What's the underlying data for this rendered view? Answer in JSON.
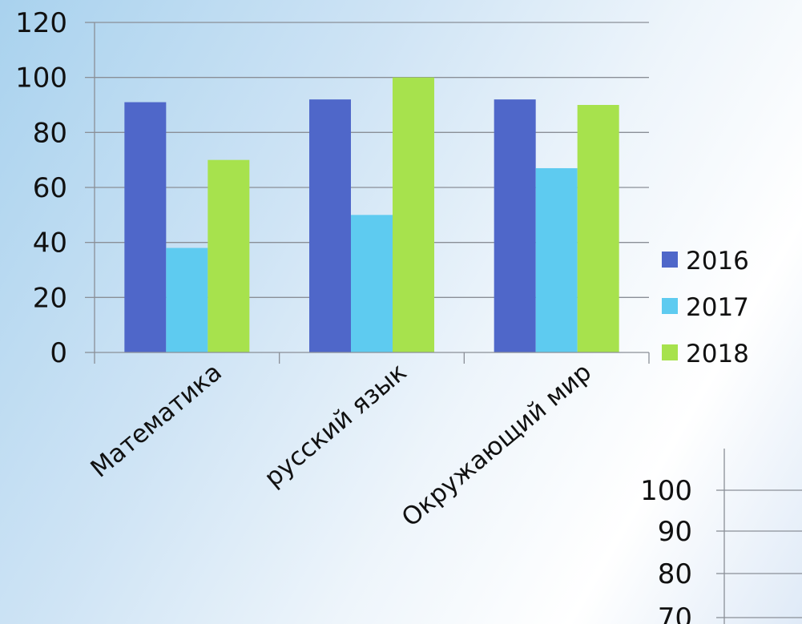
{
  "chart_data": [
    {
      "type": "bar",
      "title": "",
      "xlabel": "",
      "ylabel": "",
      "categories": [
        "Математика",
        "русский язык",
        "Окружающий мир"
      ],
      "series": [
        {
          "name": "2016",
          "values": [
            91,
            92,
            92
          ],
          "color": "#4f67c9"
        },
        {
          "name": "2017",
          "values": [
            38,
            50,
            67
          ],
          "color": "#5ecbf0"
        },
        {
          "name": "2018",
          "values": [
            70,
            100,
            90
          ],
          "color": "#a7e24d"
        }
      ],
      "ylim": [
        0,
        120
      ],
      "yticks": [
        "0",
        "20",
        "40",
        "60",
        "80",
        "100",
        "120"
      ],
      "grid": true,
      "legend": "right"
    },
    {
      "type": "bar",
      "title": "",
      "partial": true,
      "yticks": [
        "70",
        "80",
        "90",
        "100"
      ],
      "grid": true
    }
  ]
}
